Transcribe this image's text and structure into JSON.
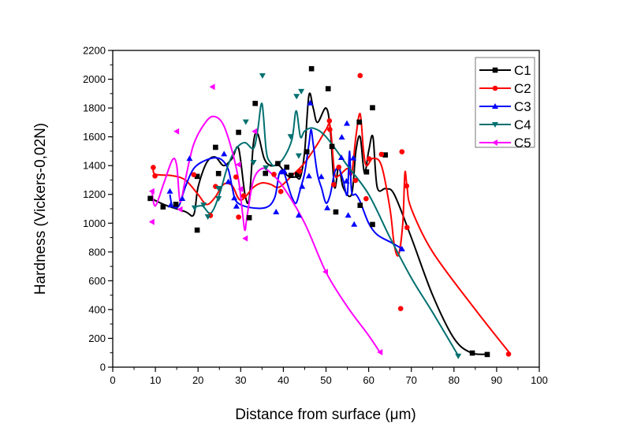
{
  "chart_data": {
    "type": "scatter",
    "title": "",
    "xlabel": "Distance from surface (μm)",
    "ylabel": "Hardness (Vickers-0,02N)",
    "xlim": [
      0,
      100
    ],
    "ylim": [
      0,
      2200
    ],
    "xticks": [
      0,
      10,
      20,
      30,
      40,
      50,
      60,
      70,
      80,
      90,
      100
    ],
    "yticks": [
      0,
      200,
      400,
      600,
      800,
      1000,
      1200,
      1400,
      1600,
      1800,
      2000,
      2200
    ],
    "grid": false,
    "legend_placement": "top-right",
    "series": [
      {
        "name": "C1",
        "color": "#000000",
        "marker": "square",
        "points": [
          [
            8.8,
            1172
          ],
          [
            11.8,
            1113
          ],
          [
            14.8,
            1131
          ],
          [
            19.8,
            952
          ],
          [
            19.8,
            1325
          ],
          [
            24.1,
            1527
          ],
          [
            24.8,
            1345
          ],
          [
            29.5,
            1631
          ],
          [
            32,
            1038
          ],
          [
            33.4,
            1832
          ],
          [
            35.8,
            1346
          ],
          [
            38.7,
            1414
          ],
          [
            40.8,
            1389
          ],
          [
            41.8,
            1332
          ],
          [
            43.3,
            1337
          ],
          [
            45.5,
            1496
          ],
          [
            46.6,
            2073
          ],
          [
            50.5,
            1934
          ],
          [
            51.4,
            1533
          ],
          [
            52.3,
            1078
          ],
          [
            57.8,
            1702
          ],
          [
            58,
            1124
          ],
          [
            59.5,
            1356
          ],
          [
            60.9,
            1802
          ],
          [
            60.9,
            991
          ],
          [
            63.9,
            1474
          ],
          [
            84.3,
            98
          ],
          [
            87.8,
            88
          ]
        ],
        "fit": [
          [
            8.5,
            1180
          ],
          [
            12,
            1130
          ],
          [
            17,
            1080
          ],
          [
            19,
            1060
          ],
          [
            20,
            1250
          ],
          [
            22,
            1420
          ],
          [
            24,
            1460
          ],
          [
            26,
            1400
          ],
          [
            28,
            1450
          ],
          [
            29.5,
            1520
          ],
          [
            31,
            1200
          ],
          [
            32,
            1170
          ],
          [
            33,
            1560
          ],
          [
            34,
            1620
          ],
          [
            35.5,
            1450
          ],
          [
            37,
            1400
          ],
          [
            39,
            1400
          ],
          [
            41,
            1330
          ],
          [
            43,
            1320
          ],
          [
            44,
            1320
          ],
          [
            45,
            1500
          ],
          [
            46,
            1890
          ],
          [
            47,
            1800
          ],
          [
            48,
            1700
          ],
          [
            50,
            1800
          ],
          [
            51,
            1650
          ],
          [
            52,
            1250
          ],
          [
            53,
            1400
          ],
          [
            54,
            1250
          ],
          [
            56,
            1200
          ],
          [
            57,
            1500
          ],
          [
            58,
            1600
          ],
          [
            59,
            1350
          ],
          [
            60,
            1500
          ],
          [
            61,
            1600
          ],
          [
            62,
            1250
          ],
          [
            64,
            1240
          ],
          [
            66,
            1200
          ],
          [
            70,
            900
          ],
          [
            75,
            500
          ],
          [
            80,
            200
          ],
          [
            84,
            100
          ],
          [
            88,
            90
          ]
        ]
      },
      {
        "name": "C2",
        "color": "#ff0000",
        "marker": "circle",
        "points": [
          [
            9.5,
            1387
          ],
          [
            9.9,
            1328
          ],
          [
            19,
            1337
          ],
          [
            22.9,
            1053
          ],
          [
            24.1,
            1255
          ],
          [
            28.9,
            1321
          ],
          [
            29.5,
            1042
          ],
          [
            30.7,
            1190
          ],
          [
            37.8,
            1339
          ],
          [
            39.4,
            1220
          ],
          [
            43.8,
            1361
          ],
          [
            50.8,
            1711
          ],
          [
            50.9,
            1651
          ],
          [
            51.8,
            1268
          ],
          [
            53,
            1389
          ],
          [
            56.9,
            1297
          ],
          [
            58,
            2025
          ],
          [
            59.4,
            1170
          ],
          [
            60.1,
            1447
          ],
          [
            63,
            1478
          ],
          [
            67.5,
            407
          ],
          [
            67.8,
            1496
          ],
          [
            68.9,
            1259
          ],
          [
            69,
            970
          ],
          [
            92.8,
            91
          ]
        ],
        "fit": [
          [
            9.5,
            1380
          ],
          [
            10,
            1340
          ],
          [
            14,
            1330
          ],
          [
            17,
            1300
          ],
          [
            20,
            1200
          ],
          [
            22,
            1130
          ],
          [
            24,
            1180
          ],
          [
            26,
            1270
          ],
          [
            28,
            1260
          ],
          [
            30,
            1160
          ],
          [
            33,
            1250
          ],
          [
            35,
            1280
          ],
          [
            37,
            1270
          ],
          [
            39,
            1250
          ],
          [
            42,
            1330
          ],
          [
            45,
            1420
          ],
          [
            48,
            1550
          ],
          [
            50,
            1650
          ],
          [
            51,
            1670
          ],
          [
            52,
            1350
          ],
          [
            53,
            1330
          ],
          [
            55,
            1380
          ],
          [
            56,
            1340
          ],
          [
            57,
            1600
          ],
          [
            58,
            1760
          ],
          [
            58.8,
            1500
          ],
          [
            59.5,
            1400
          ],
          [
            61,
            1450
          ],
          [
            63,
            1400
          ],
          [
            65,
            1100
          ],
          [
            66,
            850
          ],
          [
            67,
            780
          ],
          [
            68,
            1000
          ],
          [
            68.5,
            1350
          ],
          [
            69,
            1250
          ],
          [
            70,
            1100
          ],
          [
            75,
            800
          ],
          [
            85,
            400
          ],
          [
            93,
            100
          ]
        ]
      },
      {
        "name": "C3",
        "color": "#0000ff",
        "marker": "triangle-up",
        "points": [
          [
            13.4,
            1222
          ],
          [
            13.6,
            1126
          ],
          [
            16.3,
            1171
          ],
          [
            18,
            1449
          ],
          [
            26.1,
            1481
          ],
          [
            27.1,
            1288
          ],
          [
            28.5,
            1175
          ],
          [
            29,
            1118
          ],
          [
            38.3,
            1078
          ],
          [
            39.6,
            1356
          ],
          [
            40.2,
            1361
          ],
          [
            43.6,
            1055
          ],
          [
            44.4,
            1255
          ],
          [
            46,
            1328
          ],
          [
            46.3,
            1835
          ],
          [
            48.9,
            1323
          ],
          [
            50.3,
            1106
          ],
          [
            53.6,
            1456
          ],
          [
            53.7,
            1597
          ],
          [
            54.8,
            1292
          ],
          [
            54.9,
            1693
          ],
          [
            55.2,
            1055
          ],
          [
            56.4,
            1452
          ],
          [
            56.6,
            992
          ],
          [
            67.8,
            821
          ]
        ],
        "fit": [
          [
            13.4,
            1200
          ],
          [
            14,
            1120
          ],
          [
            15.5,
            1120
          ],
          [
            17,
            1250
          ],
          [
            19,
            1380
          ],
          [
            22,
            1440
          ],
          [
            25,
            1450
          ],
          [
            27,
            1380
          ],
          [
            28,
            1250
          ],
          [
            29,
            1150
          ],
          [
            32,
            1110
          ],
          [
            36,
            1110
          ],
          [
            38,
            1180
          ],
          [
            39,
            1340
          ],
          [
            40,
            1360
          ],
          [
            41,
            1270
          ],
          [
            42,
            1180
          ],
          [
            43,
            1140
          ],
          [
            44,
            1240
          ],
          [
            45,
            1350
          ],
          [
            46,
            1550
          ],
          [
            46.5,
            1650
          ],
          [
            47,
            1550
          ],
          [
            48,
            1340
          ],
          [
            49,
            1240
          ],
          [
            50,
            1140
          ],
          [
            51,
            1200
          ],
          [
            52,
            1350
          ],
          [
            53,
            1380
          ],
          [
            54,
            1300
          ],
          [
            55,
            1200
          ],
          [
            55.5,
            1500
          ],
          [
            56,
            1220
          ],
          [
            57,
            1200
          ],
          [
            58,
            1150
          ],
          [
            60,
            1000
          ],
          [
            62,
            920
          ],
          [
            65,
            870
          ],
          [
            68,
            820
          ]
        ]
      },
      {
        "name": "C4",
        "color": "#007070",
        "marker": "triangle-down",
        "points": [
          [
            19.2,
            1107
          ],
          [
            21.3,
            1127
          ],
          [
            22.3,
            1045
          ],
          [
            24.8,
            1171
          ],
          [
            24.8,
            1242
          ],
          [
            31.2,
            1704
          ],
          [
            33,
            1423
          ],
          [
            35.1,
            2025
          ],
          [
            35.9,
            1385
          ],
          [
            41.7,
            1602
          ],
          [
            43.1,
            1881
          ],
          [
            43.6,
            1469
          ],
          [
            44.2,
            1916
          ],
          [
            81,
            77
          ]
        ],
        "fit": [
          [
            19,
            1110
          ],
          [
            21,
            1120
          ],
          [
            23,
            1070
          ],
          [
            25,
            1200
          ],
          [
            27,
            1400
          ],
          [
            29,
            1520
          ],
          [
            31,
            1560
          ],
          [
            33,
            1520
          ],
          [
            34,
            1650
          ],
          [
            35,
            1830
          ],
          [
            36,
            1500
          ],
          [
            37,
            1420
          ],
          [
            38,
            1400
          ],
          [
            40,
            1450
          ],
          [
            42,
            1580
          ],
          [
            43,
            1780
          ],
          [
            44,
            1600
          ],
          [
            45,
            1640
          ],
          [
            47,
            1660
          ],
          [
            50,
            1600
          ],
          [
            55,
            1400
          ],
          [
            60,
            1200
          ],
          [
            65,
            900
          ],
          [
            70,
            620
          ],
          [
            75,
            380
          ],
          [
            81,
            80
          ]
        ]
      },
      {
        "name": "C5",
        "color": "#ff00ff",
        "marker": "triangle-left",
        "points": [
          [
            9.2,
            1222
          ],
          [
            9.2,
            1009
          ],
          [
            15,
            1638
          ],
          [
            15.8,
            1096
          ],
          [
            23.4,
            1947
          ],
          [
            29.5,
            1407
          ],
          [
            30,
            1237
          ],
          [
            31.1,
            894
          ],
          [
            33.3,
            1638
          ],
          [
            49.9,
            662
          ],
          [
            62.7,
            104
          ]
        ],
        "fit": [
          [
            9.2,
            1220
          ],
          [
            10,
            1120
          ],
          [
            12,
            1280
          ],
          [
            14,
            1440
          ],
          [
            15,
            1400
          ],
          [
            15.8,
            1150
          ],
          [
            17,
            1300
          ],
          [
            19,
            1550
          ],
          [
            22,
            1710
          ],
          [
            24,
            1740
          ],
          [
            26,
            1680
          ],
          [
            28,
            1500
          ],
          [
            29.5,
            1300
          ],
          [
            30.5,
            1050
          ],
          [
            31,
            950
          ],
          [
            31.5,
            1050
          ],
          [
            33,
            1300
          ],
          [
            35,
            1380
          ],
          [
            37,
            1350
          ],
          [
            40,
            1250
          ],
          [
            45,
            1000
          ],
          [
            50,
            660
          ],
          [
            55,
            420
          ],
          [
            60,
            220
          ],
          [
            62.7,
            100
          ]
        ]
      }
    ]
  }
}
